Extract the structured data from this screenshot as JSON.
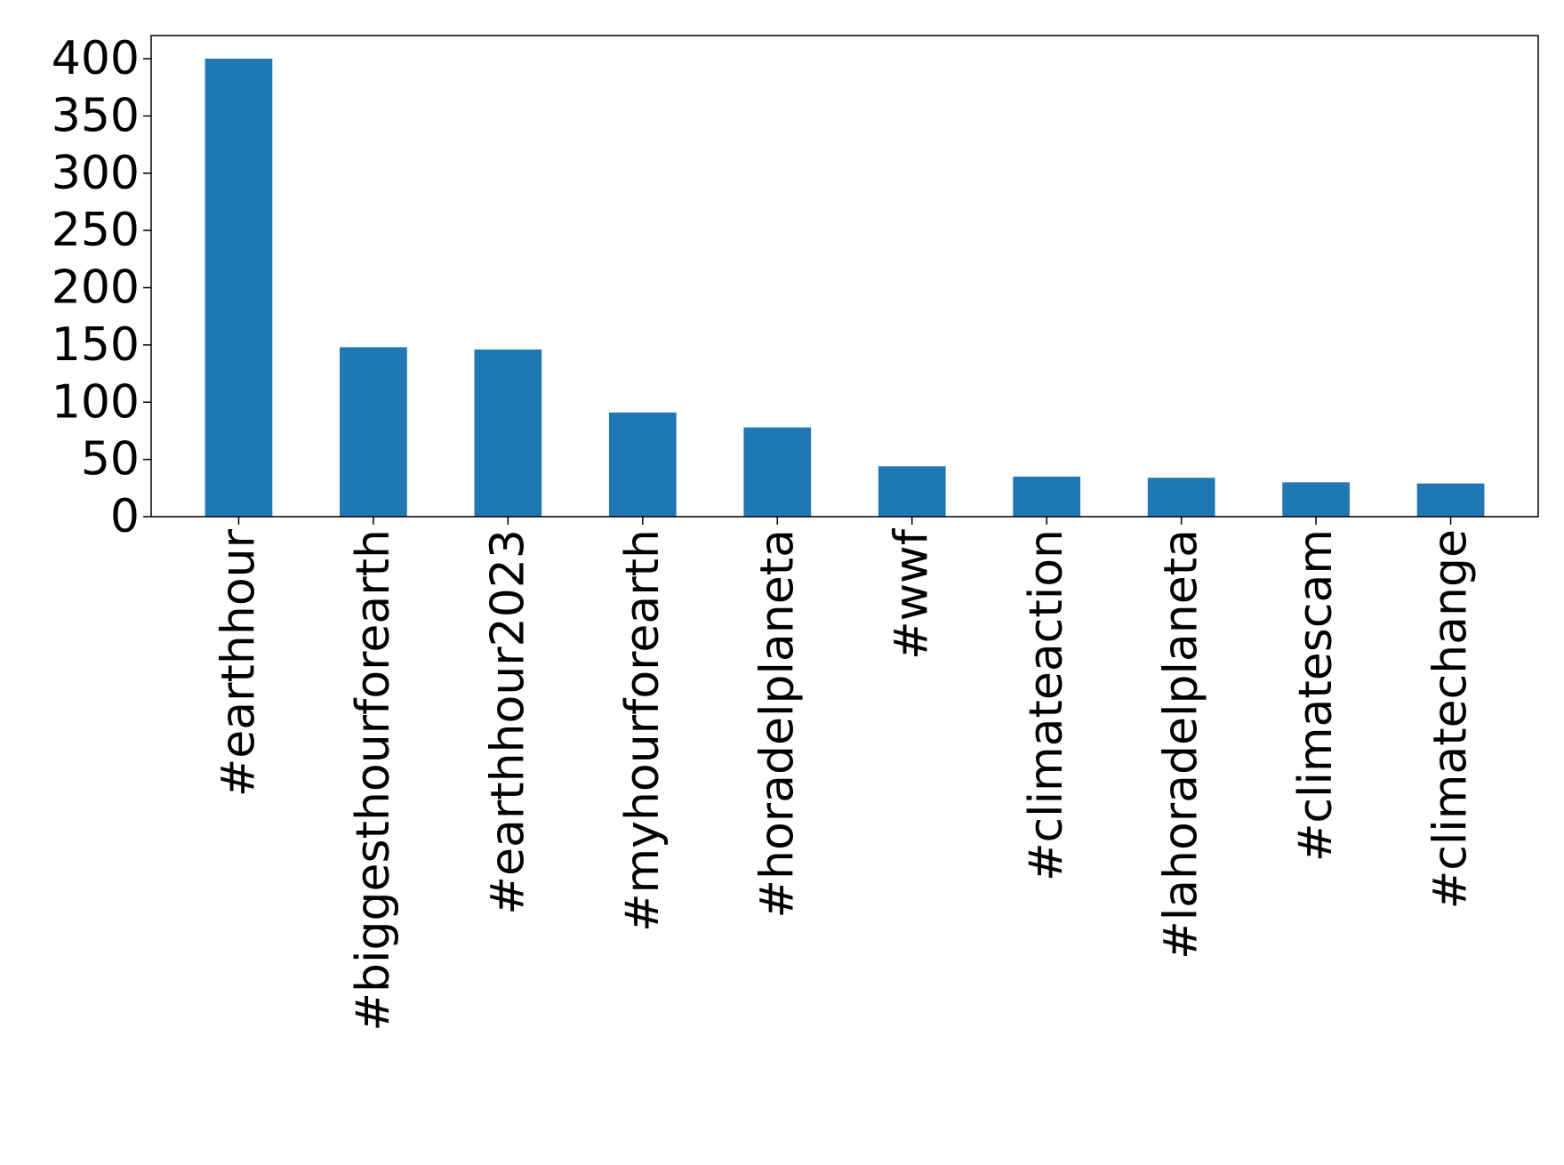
{
  "chart_data": {
    "type": "bar",
    "title": "",
    "xlabel": "",
    "ylabel": "",
    "categories": [
      "#earthhour",
      "#biggesthourforearth",
      "#earthhour2023",
      "#myhourforearth",
      "#horadelplaneta",
      "#wwf",
      "#climateaction",
      "#lahoradelplaneta",
      "#climatescam",
      "#climatechange"
    ],
    "values": [
      400,
      148,
      146,
      91,
      78,
      44,
      35,
      34,
      30,
      29
    ],
    "ylim": [
      0,
      420
    ],
    "yticks": [
      0,
      50,
      100,
      150,
      200,
      250,
      300,
      350,
      400
    ],
    "grid": false,
    "legend": "none",
    "bar_color": "#1f77b4"
  }
}
